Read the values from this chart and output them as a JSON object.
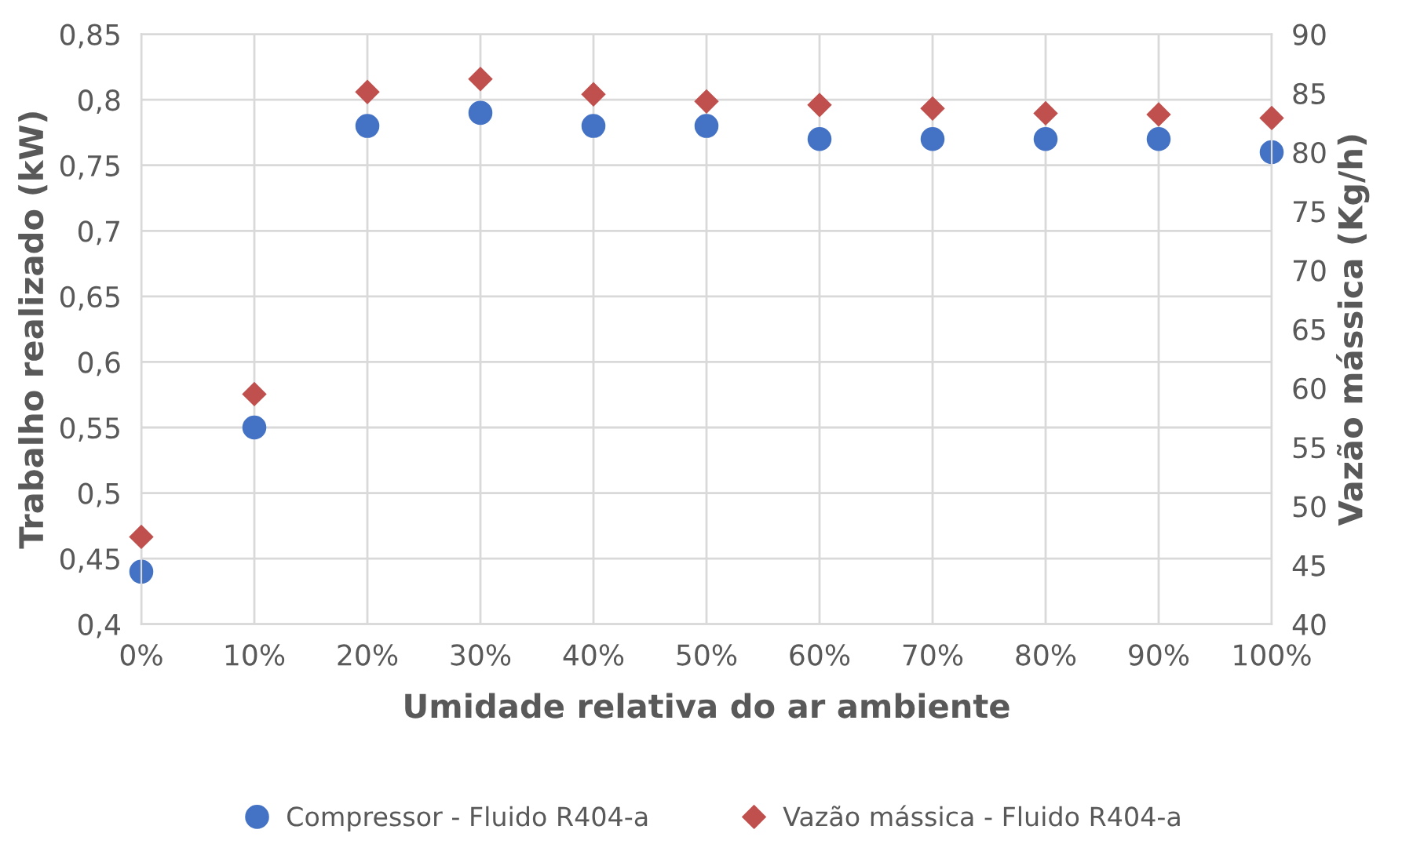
{
  "chart_data": {
    "type": "scatter",
    "xlabel": "Umidade relativa do ar ambiente",
    "ylabel": "Trabalho realizado (kW)",
    "y2label": "Vazão mássica (Kg/h)",
    "x": [
      0,
      10,
      20,
      30,
      40,
      50,
      60,
      70,
      80,
      90,
      100
    ],
    "xlim": [
      0,
      100
    ],
    "xticks": [
      {
        "value": 0,
        "label": "0%"
      },
      {
        "value": 10,
        "label": "10%"
      },
      {
        "value": 20,
        "label": "20%"
      },
      {
        "value": 30,
        "label": "30%"
      },
      {
        "value": 40,
        "label": "40%"
      },
      {
        "value": 50,
        "label": "50%"
      },
      {
        "value": 60,
        "label": "60%"
      },
      {
        "value": 70,
        "label": "70%"
      },
      {
        "value": 80,
        "label": "80%"
      },
      {
        "value": 90,
        "label": "90%"
      },
      {
        "value": 100,
        "label": "100%"
      }
    ],
    "ylim": [
      0.4,
      0.85
    ],
    "yticks": [
      {
        "value": 0.4,
        "label": "0,4"
      },
      {
        "value": 0.45,
        "label": "0,45"
      },
      {
        "value": 0.5,
        "label": "0,5"
      },
      {
        "value": 0.55,
        "label": "0,55"
      },
      {
        "value": 0.6,
        "label": "0,6"
      },
      {
        "value": 0.65,
        "label": "0,65"
      },
      {
        "value": 0.7,
        "label": "0,7"
      },
      {
        "value": 0.75,
        "label": "0,75"
      },
      {
        "value": 0.8,
        "label": "0,8"
      },
      {
        "value": 0.85,
        "label": "0,85"
      }
    ],
    "y2lim": [
      40,
      90
    ],
    "y2ticks": [
      40,
      45,
      50,
      55,
      60,
      65,
      70,
      75,
      80,
      85,
      90
    ],
    "grid": true,
    "legend": "bottom",
    "series": [
      {
        "name": "Compressor - Fluido R404-a",
        "color": "#4472c4",
        "marker": "circle",
        "values": [
          0.44,
          0.55,
          0.78,
          0.79,
          0.78,
          0.78,
          0.77,
          0.77,
          0.77,
          0.77,
          0.76
        ]
      },
      {
        "name": "Vazão mássica - Fluido R404-a",
        "color": "#c0504d",
        "marker": "diamond",
        "axis": "y2",
        "values": [
          47.4,
          59.5,
          85.1,
          86.2,
          84.9,
          84.3,
          84.0,
          83.7,
          83.3,
          83.2,
          82.9
        ]
      }
    ]
  }
}
